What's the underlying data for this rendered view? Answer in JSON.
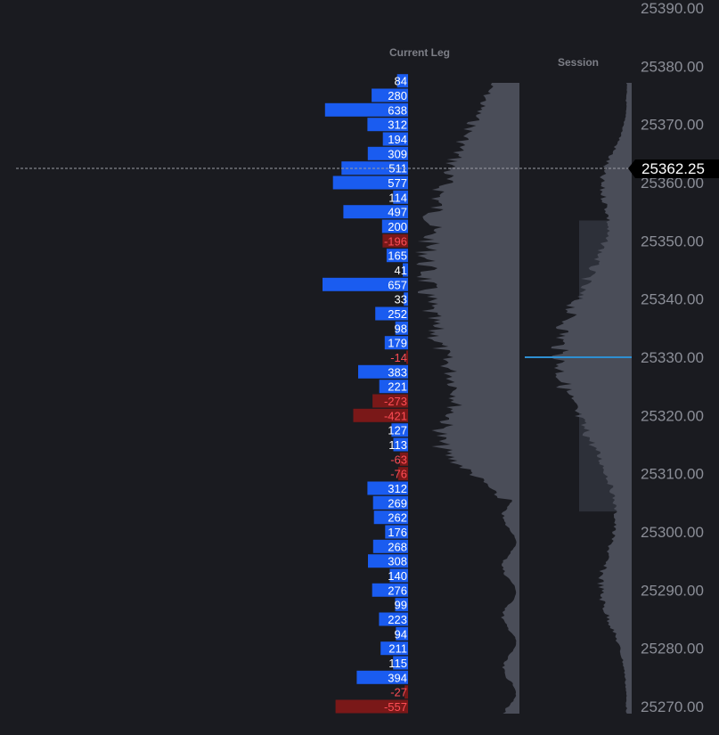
{
  "chart_data": {
    "type": "bar",
    "headers": {
      "current_leg": "Current Leg",
      "session": "Session"
    },
    "price_axis": {
      "ticks": [
        "25390.00",
        "25380.00",
        "25370.00",
        "25360.00",
        "25350.00",
        "25340.00",
        "25330.00",
        "25320.00",
        "25310.00",
        "25300.00",
        "25290.00",
        "25280.00",
        "25270.00"
      ],
      "range": [
        25268,
        25392
      ]
    },
    "current_price": {
      "label": "25362.25",
      "value": 25362.25
    },
    "current_leg_delta": {
      "top_price": 25377.5,
      "step": 2.5,
      "labels": [
        "84",
        "280",
        "638",
        "312",
        "194",
        "309",
        "511",
        "577",
        "114",
        "497",
        "200",
        "-196",
        "165",
        "41",
        "657",
        "33",
        "252",
        "98",
        "179",
        "-14",
        "383",
        "221",
        "-273",
        "-421",
        "127",
        "113",
        "-63",
        "-76",
        "312",
        "269",
        "262",
        "176",
        "268",
        "308",
        "140",
        "276",
        "99",
        "223",
        "94",
        "211",
        "115",
        "394",
        "-27",
        "-557"
      ],
      "values": [
        84,
        280,
        638,
        312,
        194,
        309,
        511,
        577,
        114,
        497,
        200,
        -196,
        165,
        41,
        657,
        33,
        252,
        98,
        179,
        -14,
        383,
        221,
        -273,
        -421,
        127,
        113,
        -63,
        -76,
        312,
        269,
        262,
        176,
        268,
        308,
        140,
        276,
        99,
        223,
        94,
        211,
        115,
        394,
        -27,
        -557
      ]
    },
    "session_poc": 25330.0,
    "value_area": [
      25303.5,
      25353.5
    ],
    "colors": {
      "positive": "#1a5cf0",
      "negative": "#7a1818",
      "negative_text": "#ff4d55",
      "profile": "#4a4d58",
      "value_area": "#2d3039",
      "poc_line": "#2e8fd1",
      "price_tag": "#000000"
    }
  }
}
